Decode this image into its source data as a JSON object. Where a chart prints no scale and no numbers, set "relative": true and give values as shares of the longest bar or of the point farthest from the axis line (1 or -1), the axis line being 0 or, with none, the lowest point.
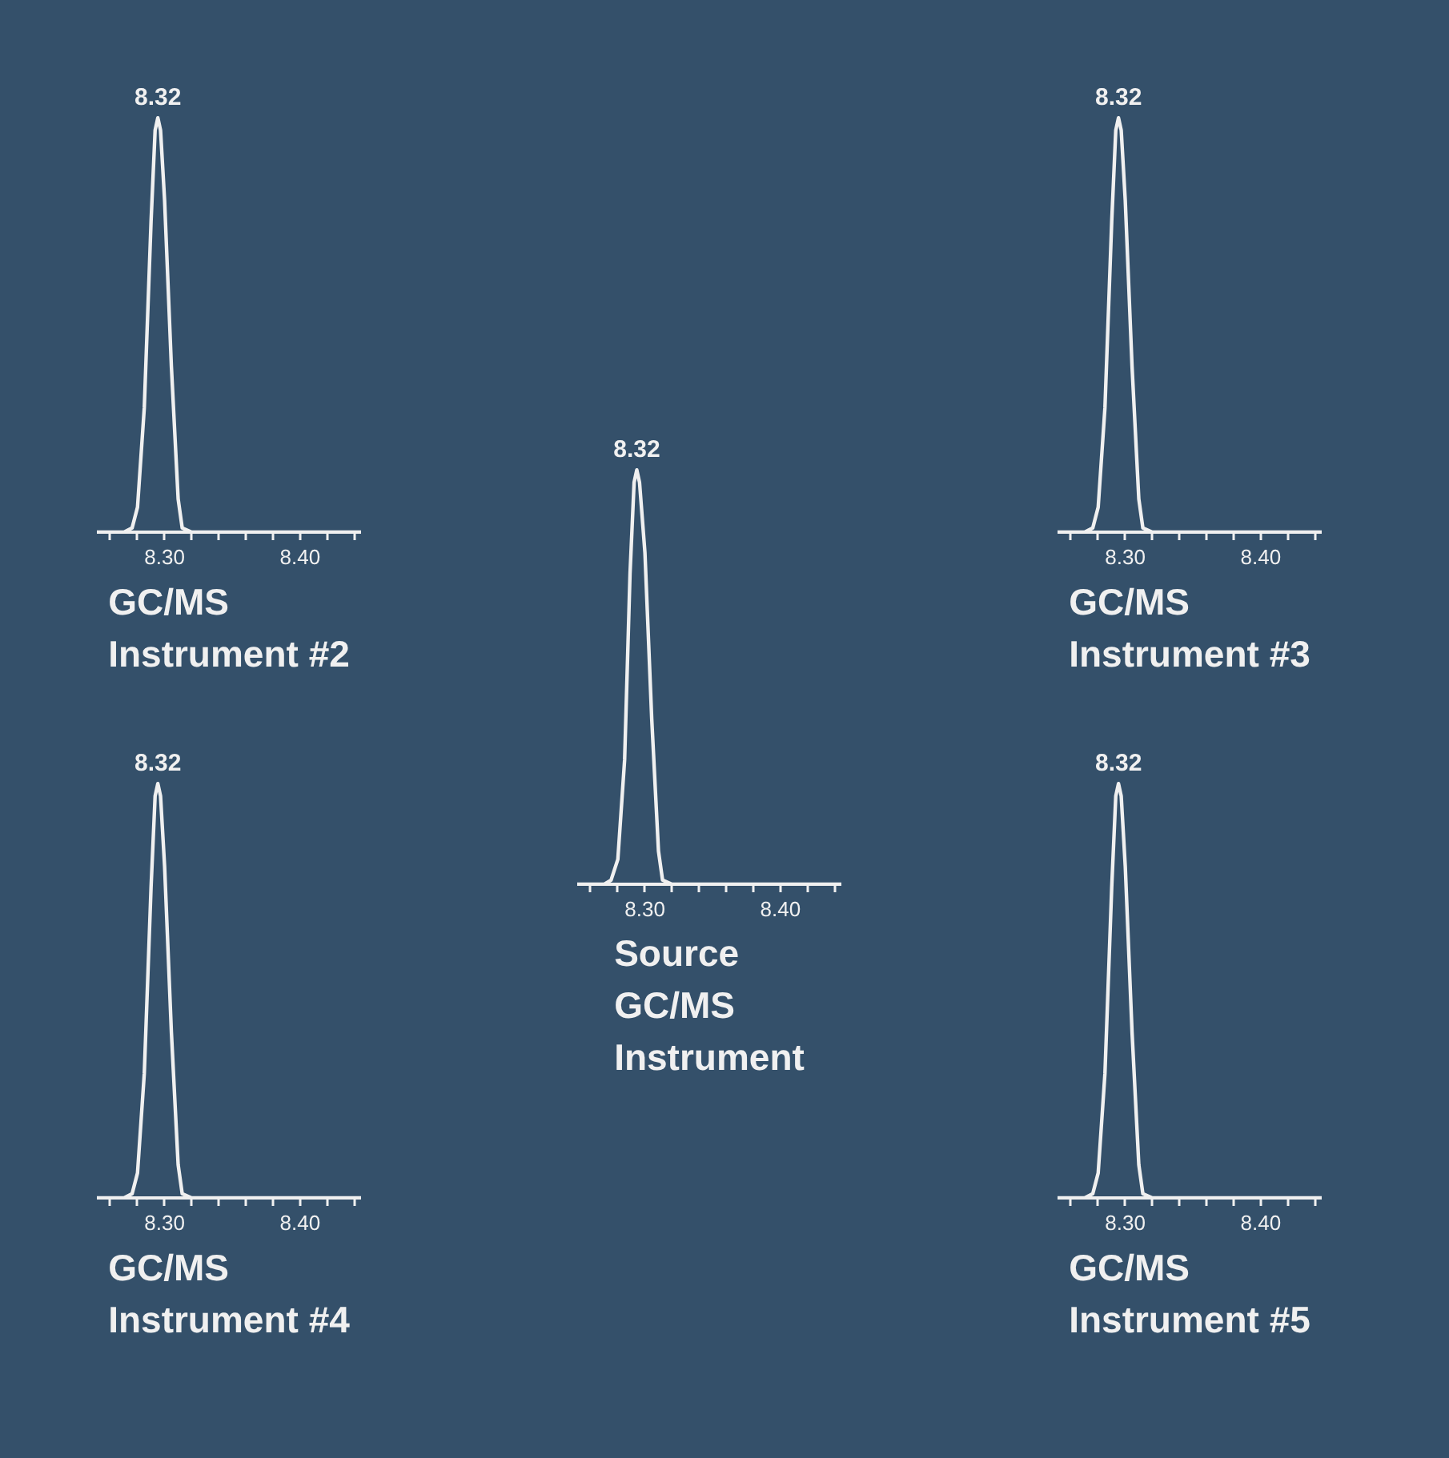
{
  "chart_data": [
    {
      "type": "line",
      "title": "GC/MS\nInstrument #2",
      "relative": true,
      "xlim": [
        8.25,
        8.445
      ],
      "xticks": [
        {
          "value": 8.26,
          "label": null
        },
        {
          "value": 8.28,
          "label": null
        },
        {
          "value": 8.3,
          "label": "8.30"
        },
        {
          "value": 8.32,
          "label": null
        },
        {
          "value": 8.34,
          "label": null
        },
        {
          "value": 8.36,
          "label": null
        },
        {
          "value": 8.38,
          "label": null
        },
        {
          "value": 8.4,
          "label": "8.40"
        },
        {
          "value": 8.42,
          "label": null
        },
        {
          "value": 8.44,
          "label": null
        }
      ],
      "x": [
        8.25,
        8.27,
        8.276,
        8.28,
        8.285,
        8.29,
        8.293,
        8.295,
        8.297,
        8.3,
        8.305,
        8.31,
        8.313,
        8.32,
        8.35,
        8.4,
        8.445
      ],
      "series": [
        {
          "color": "#f0f0f0",
          "values": [
            0,
            0,
            0.01,
            0.06,
            0.3,
            0.75,
            0.97,
            1,
            0.97,
            0.8,
            0.4,
            0.08,
            0.01,
            0,
            0,
            0,
            0
          ]
        }
      ],
      "annotations": [
        "8.32"
      ]
    },
    {
      "type": "line",
      "title": "GC/MS\nInstrument #3",
      "relative": true,
      "xlim": [
        8.25,
        8.445
      ],
      "xticks": [
        {
          "value": 8.26,
          "label": null
        },
        {
          "value": 8.28,
          "label": null
        },
        {
          "value": 8.3,
          "label": "8.30"
        },
        {
          "value": 8.32,
          "label": null
        },
        {
          "value": 8.34,
          "label": null
        },
        {
          "value": 8.36,
          "label": null
        },
        {
          "value": 8.38,
          "label": null
        },
        {
          "value": 8.4,
          "label": "8.40"
        },
        {
          "value": 8.42,
          "label": null
        },
        {
          "value": 8.44,
          "label": null
        }
      ],
      "x": [
        8.25,
        8.27,
        8.276,
        8.28,
        8.285,
        8.29,
        8.293,
        8.295,
        8.297,
        8.3,
        8.305,
        8.31,
        8.313,
        8.32,
        8.35,
        8.4,
        8.445
      ],
      "series": [
        {
          "color": "#f0f0f0",
          "values": [
            0,
            0,
            0.01,
            0.06,
            0.3,
            0.75,
            0.97,
            1,
            0.97,
            0.8,
            0.4,
            0.08,
            0.01,
            0,
            0,
            0,
            0
          ]
        }
      ],
      "annotations": [
        "8.32"
      ]
    },
    {
      "type": "line",
      "title": "Source\nGC/MS\nInstrument",
      "relative": true,
      "xlim": [
        8.25,
        8.445
      ],
      "xticks": [
        {
          "value": 8.26,
          "label": null
        },
        {
          "value": 8.28,
          "label": null
        },
        {
          "value": 8.3,
          "label": "8.30"
        },
        {
          "value": 8.32,
          "label": null
        },
        {
          "value": 8.34,
          "label": null
        },
        {
          "value": 8.36,
          "label": null
        },
        {
          "value": 8.38,
          "label": null
        },
        {
          "value": 8.4,
          "label": "8.40"
        },
        {
          "value": 8.42,
          "label": null
        },
        {
          "value": 8.44,
          "label": null
        }
      ],
      "x": [
        8.25,
        8.27,
        8.275,
        8.28,
        8.285,
        8.289,
        8.292,
        8.294,
        8.296,
        8.3,
        8.305,
        8.31,
        8.313,
        8.32,
        8.35,
        8.4,
        8.445
      ],
      "series": [
        {
          "color": "#f0f0f0",
          "values": [
            0,
            0,
            0.01,
            0.06,
            0.3,
            0.75,
            0.97,
            1,
            0.97,
            0.8,
            0.4,
            0.08,
            0.01,
            0,
            0,
            0,
            0
          ]
        }
      ],
      "annotations": [
        "8.32"
      ]
    },
    {
      "type": "line",
      "title": "GC/MS\nInstrument #4",
      "relative": true,
      "xlim": [
        8.25,
        8.445
      ],
      "xticks": [
        {
          "value": 8.26,
          "label": null
        },
        {
          "value": 8.28,
          "label": null
        },
        {
          "value": 8.3,
          "label": "8.30"
        },
        {
          "value": 8.32,
          "label": null
        },
        {
          "value": 8.34,
          "label": null
        },
        {
          "value": 8.36,
          "label": null
        },
        {
          "value": 8.38,
          "label": null
        },
        {
          "value": 8.4,
          "label": "8.40"
        },
        {
          "value": 8.42,
          "label": null
        },
        {
          "value": 8.44,
          "label": null
        }
      ],
      "x": [
        8.25,
        8.27,
        8.276,
        8.28,
        8.285,
        8.29,
        8.293,
        8.295,
        8.297,
        8.3,
        8.305,
        8.31,
        8.313,
        8.32,
        8.35,
        8.4,
        8.445
      ],
      "series": [
        {
          "color": "#f0f0f0",
          "values": [
            0,
            0,
            0.01,
            0.06,
            0.3,
            0.75,
            0.97,
            1,
            0.97,
            0.8,
            0.4,
            0.08,
            0.01,
            0,
            0,
            0,
            0
          ]
        }
      ],
      "annotations": [
        "8.32"
      ]
    },
    {
      "type": "line",
      "title": "GC/MS\nInstrument #5",
      "relative": true,
      "xlim": [
        8.25,
        8.445
      ],
      "xticks": [
        {
          "value": 8.26,
          "label": null
        },
        {
          "value": 8.28,
          "label": null
        },
        {
          "value": 8.3,
          "label": "8.30"
        },
        {
          "value": 8.32,
          "label": null
        },
        {
          "value": 8.34,
          "label": null
        },
        {
          "value": 8.36,
          "label": null
        },
        {
          "value": 8.38,
          "label": null
        },
        {
          "value": 8.4,
          "label": "8.40"
        },
        {
          "value": 8.42,
          "label": null
        },
        {
          "value": 8.44,
          "label": null
        }
      ],
      "x": [
        8.25,
        8.27,
        8.276,
        8.28,
        8.285,
        8.29,
        8.293,
        8.295,
        8.297,
        8.3,
        8.305,
        8.31,
        8.313,
        8.32,
        8.35,
        8.4,
        8.445
      ],
      "series": [
        {
          "color": "#f0f0f0",
          "values": [
            0,
            0,
            0.01,
            0.06,
            0.3,
            0.75,
            0.97,
            1,
            0.97,
            0.8,
            0.4,
            0.08,
            0.01,
            0,
            0,
            0,
            0
          ]
        }
      ],
      "annotations": [
        "8.32"
      ]
    }
  ]
}
